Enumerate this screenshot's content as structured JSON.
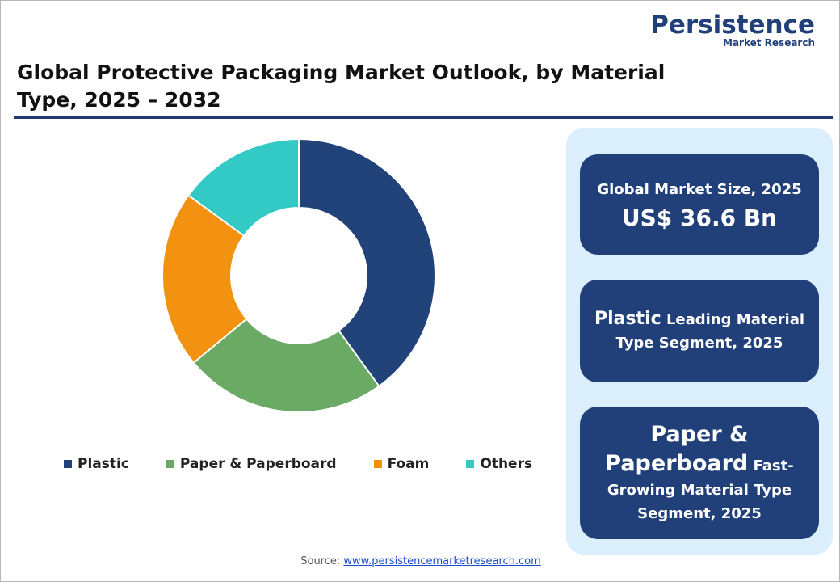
{
  "logo": {
    "name": "Persistence",
    "tagline": "Market Research"
  },
  "chart_data": {
    "type": "pie",
    "title": "Global Protective Packaging Market Outlook, by Material Type, 2025 – 2032",
    "categories": [
      "Plastic",
      "Paper & Paperboard",
      "Foam",
      "Others"
    ],
    "values": [
      40,
      24,
      21,
      15
    ],
    "colors": [
      "#22427a",
      "#6aaa64",
      "#f39110",
      "#33c9c5"
    ],
    "donut": true,
    "legend": "bottom"
  },
  "panels": [
    {
      "caption": "Global Market Size, 2025",
      "highlight": "US$ 36.6 Bn"
    },
    {
      "highlight": "Plastic",
      "caption": "Leading Material Type Segment, 2025"
    },
    {
      "highlight": "Paper & Paperboard",
      "caption": "Fast-Growing Material Type Segment, 2025"
    }
  ],
  "source": {
    "label": "Source:",
    "link": "www.persistencemarketresearch.com"
  }
}
